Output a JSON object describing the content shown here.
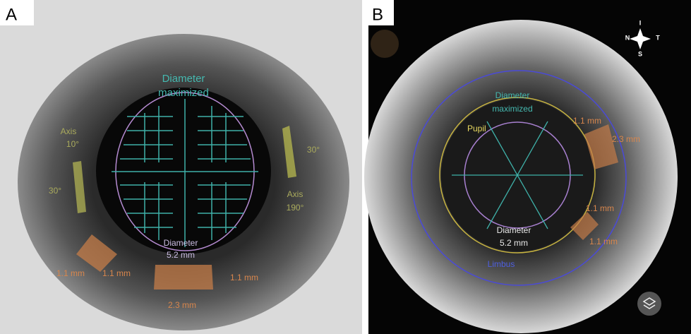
{
  "panels": [
    {
      "label": "A",
      "texts": [
        "Diameter",
        "maximized",
        "Axis",
        "10°",
        "30°",
        "30°",
        "Axis",
        "190°",
        "Diameter",
        "5.2 mm",
        "1.1 mm",
        "1.1 mm",
        "1.1 mm",
        "2.3 mm"
      ]
    },
    {
      "label": "B",
      "compass": [
        "N",
        "T",
        "I",
        "S"
      ],
      "texts": [
        "Diameter",
        "maximized",
        "Pupil",
        "1.1 mm",
        "2.3 mm",
        "1.1 mm",
        "1.1 mm",
        "Diameter",
        "5.2 mm",
        "Limbus"
      ]
    }
  ]
}
